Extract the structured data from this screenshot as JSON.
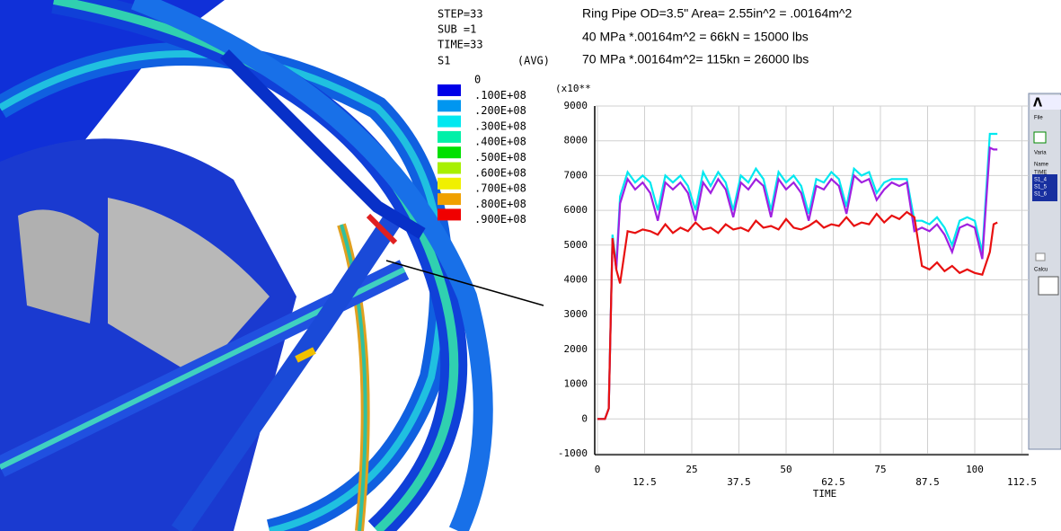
{
  "status": {
    "lines": [
      "STEP=33",
      "SUB =1",
      "TIME=33"
    ]
  },
  "legend": {
    "title": "S1",
    "note": "(AVG)",
    "labels": [
      "0",
      ".100E+08",
      ".200E+08",
      ".300E+08",
      ".400E+08",
      ".500E+08",
      ".600E+08",
      ".700E+08",
      ".800E+08",
      ".900E+08"
    ],
    "colors": [
      "#0000e8",
      "#0096f0",
      "#00e8f0",
      "#00f0a8",
      "#00e000",
      "#a8f000",
      "#f0f000",
      "#f0a000",
      "#f00000"
    ]
  },
  "annotations": [
    "Ring Pipe OD=3.5\" Area= 2.55in^2 = .00164m^2",
    "40 MPa *.00164m^2 = 66kN = 15000 lbs",
    "70 MPa  *.00164m^2= 115kn = 26000 lbs"
  ],
  "side_panel": {
    "items": [
      "File",
      "Varia",
      "Name",
      "TIME",
      "S1_4",
      "S1_5",
      "S1_6",
      "Calcu"
    ]
  },
  "chart_data": {
    "type": "line",
    "ylabel": "(x10**",
    "xlabel": "TIME",
    "grid": true,
    "xlim": [
      0,
      114.3
    ],
    "ylim": [
      -1000,
      9000
    ],
    "xticks": [
      0,
      12.5,
      25,
      37.5,
      50,
      62.5,
      75,
      87.5,
      100,
      112.5
    ],
    "yticks": [
      -1000,
      0,
      1000,
      2000,
      3000,
      4000,
      5000,
      6000,
      7000,
      8000,
      9000
    ],
    "x": [
      0,
      2,
      3,
      4,
      5,
      6,
      8,
      10,
      12,
      14,
      16,
      18,
      20,
      22,
      24,
      26,
      28,
      30,
      32,
      34,
      36,
      38,
      40,
      42,
      44,
      46,
      48,
      50,
      52,
      54,
      56,
      58,
      60,
      62,
      64,
      66,
      68,
      70,
      72,
      74,
      76,
      78,
      80,
      82,
      84,
      86,
      88,
      90,
      92,
      94,
      96,
      98,
      100,
      102,
      104,
      105,
      106
    ],
    "series": [
      {
        "color": "#00e8f0",
        "values": [
          0,
          0,
          300,
          5300,
          4400,
          6400,
          7100,
          6800,
          7000,
          6800,
          6000,
          7000,
          6800,
          7000,
          6700,
          6000,
          7100,
          6700,
          7100,
          6800,
          6000,
          7000,
          6800,
          7200,
          6900,
          6000,
          7100,
          6800,
          7000,
          6700,
          5900,
          6900,
          6800,
          7100,
          6900,
          6100,
          7200,
          7000,
          7100,
          6500,
          6800,
          6900,
          6900,
          6900,
          5700,
          5700,
          5600,
          5800,
          5500,
          5000,
          5700,
          5800,
          5700,
          4800,
          8200,
          8200,
          8200
        ]
      },
      {
        "color": "#a020e0",
        "values": [
          0,
          0,
          300,
          5200,
          4300,
          6200,
          6900,
          6600,
          6800,
          6500,
          5700,
          6800,
          6600,
          6800,
          6500,
          5700,
          6800,
          6500,
          6900,
          6600,
          5800,
          6800,
          6600,
          6900,
          6700,
          5800,
          6900,
          6600,
          6800,
          6500,
          5700,
          6700,
          6600,
          6900,
          6700,
          5900,
          7000,
          6800,
          6900,
          6300,
          6600,
          6800,
          6700,
          6800,
          5400,
          5500,
          5400,
          5600,
          5300,
          4800,
          5500,
          5600,
          5500,
          4600,
          7800,
          7750,
          7750
        ]
      },
      {
        "color": "#e81010",
        "values": [
          0,
          0,
          300,
          5200,
          4300,
          3900,
          5400,
          5350,
          5450,
          5400,
          5300,
          5600,
          5350,
          5500,
          5400,
          5650,
          5450,
          5500,
          5350,
          5600,
          5450,
          5500,
          5400,
          5700,
          5500,
          5550,
          5450,
          5750,
          5500,
          5450,
          5550,
          5700,
          5500,
          5600,
          5550,
          5800,
          5550,
          5650,
          5600,
          5900,
          5650,
          5850,
          5750,
          5950,
          5800,
          4400,
          4300,
          4500,
          4250,
          4400,
          4200,
          4300,
          4200,
          4150,
          4800,
          5600,
          5650
        ]
      }
    ]
  }
}
